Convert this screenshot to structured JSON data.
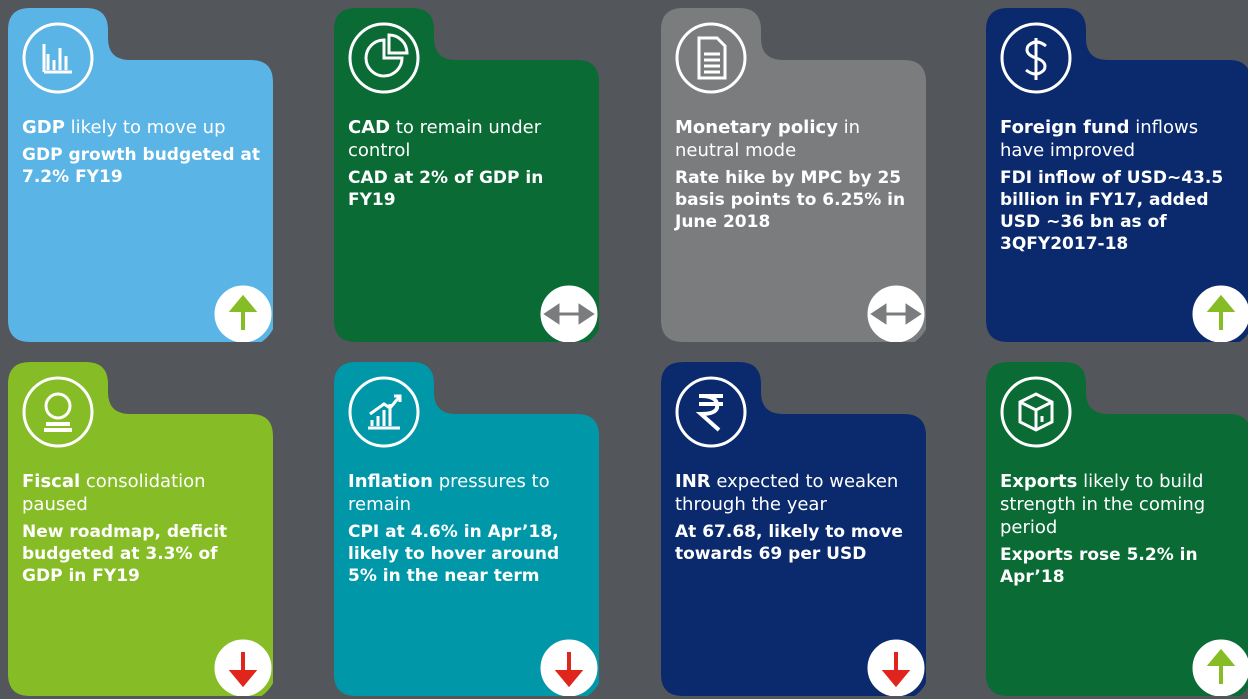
{
  "cards": [
    {
      "lead": "GDP",
      "text": "likely to move up",
      "detail": "GDP growth budgeted at 7.2% FY19"
    },
    {
      "lead": "CAD",
      "text": "to remain under control",
      "detail": "CAD at 2% of GDP in FY19"
    },
    {
      "lead": "Monetary policy",
      "text": "in neutral mode",
      "detail": "Rate hike by MPC by 25 basis points to 6.25% in June 2018"
    },
    {
      "lead": "Foreign fund",
      "text": "inflows have improved",
      "detail": "FDI inflow of USD~43.5 billion in FY17, added USD ~36 bn as of 3QFY2017-18"
    },
    {
      "lead": "Fiscal",
      "text": "consolidation paused",
      "detail": "New roadmap, deficit budgeted at 3.3% of GDP in FY19"
    },
    {
      "lead": "Inflation",
      "text": "pressures to remain",
      "detail": "CPI at 4.6% in Apr’18, likely to hover around 5% in the near term"
    },
    {
      "lead": "INR",
      "text": "expected to weaken through the year",
      "detail": "At 67.68, likely to move towards 69 per USD"
    },
    {
      "lead": "Exports",
      "text": "likely to build strength in the coming period",
      "detail": "Exports rose 5.2% in Apr’18"
    }
  ]
}
